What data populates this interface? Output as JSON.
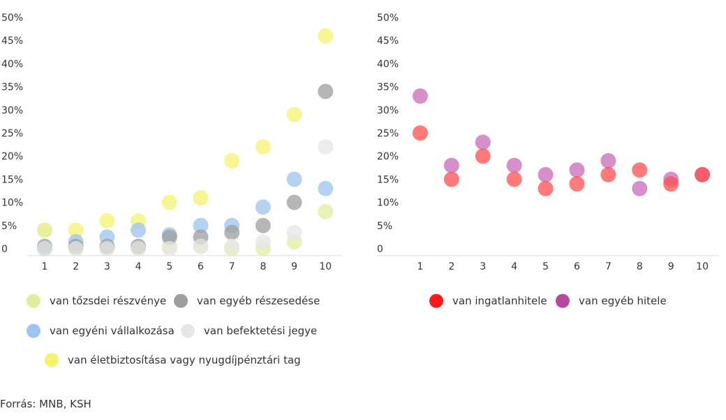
{
  "source": "Forrás: MNB, KSH",
  "chart_data": [
    {
      "type": "scatter",
      "title": "",
      "xlabel": "",
      "ylabel": "",
      "ylim": [
        0,
        50
      ],
      "y_ticks": [
        "50%",
        "45%",
        "40%",
        "35%",
        "30%",
        "25%",
        "20%",
        "15%",
        "10%",
        "5%",
        "0"
      ],
      "y_tick_values": [
        50,
        45,
        40,
        35,
        30,
        25,
        20,
        15,
        10,
        5,
        0
      ],
      "categories": [
        "1",
        "2",
        "3",
        "4",
        "5",
        "6",
        "7",
        "8",
        "9",
        "10"
      ],
      "legend": "bottom",
      "series": [
        {
          "name": "van életbiztosítása vagy nyugdíjpénztári tag",
          "color": "#f5f36e",
          "values": [
            4,
            4,
            6,
            6,
            10,
            11,
            19,
            22,
            29,
            46
          ]
        },
        {
          "name": "van tőzsdei részvénye",
          "color": "#e3eda0",
          "values": [
            4,
            0,
            0,
            0,
            0.5,
            0.5,
            0,
            0,
            1.5,
            8
          ]
        },
        {
          "name": "van egyéni vállalkozása",
          "color": "#9dc3ef",
          "values": [
            0,
            1.5,
            2.5,
            4,
            3,
            5,
            5,
            9,
            15,
            13
          ]
        },
        {
          "name": "van egyéb részesedése",
          "color": "#9e9e9e",
          "values": [
            0.5,
            0.5,
            0.5,
            0.5,
            2.5,
            2.5,
            3.5,
            5,
            10,
            34
          ]
        },
        {
          "name": "van befektetési jegye",
          "color": "#e6e6e6",
          "values": [
            0,
            0,
            0,
            0,
            0,
            0.5,
            0.5,
            1.5,
            3.5,
            22
          ]
        }
      ],
      "legend_items": [
        {
          "label": "van tőzsdei részvénye",
          "color": "#e3eda0"
        },
        {
          "label": "van egyéb részesedése",
          "color": "#9e9e9e"
        },
        {
          "label": "van egyéni vállalkozása",
          "color": "#9dc3ef"
        },
        {
          "label": "van befektetési jegye",
          "color": "#e6e6e6"
        },
        {
          "label": "van életbiztosítása vagy nyugdíjpénztári tag",
          "color": "#f5f36e"
        }
      ]
    },
    {
      "type": "scatter",
      "title": "",
      "xlabel": "",
      "ylabel": "",
      "ylim": [
        0,
        50
      ],
      "y_ticks": [
        "50%",
        "45%",
        "40%",
        "35%",
        "30%",
        "25%",
        "20%",
        "15%",
        "10%",
        "5%",
        "0"
      ],
      "y_tick_values": [
        50,
        45,
        40,
        35,
        30,
        25,
        20,
        15,
        10,
        5,
        0
      ],
      "categories": [
        "1",
        "2",
        "3",
        "4",
        "5",
        "6",
        "7",
        "8",
        "9",
        "10"
      ],
      "legend": "bottom",
      "series": [
        {
          "name": "van egyéb hitele",
          "color": "#c869b9",
          "values": [
            33,
            18,
            23,
            18,
            16,
            17,
            19,
            13,
            15,
            16
          ]
        },
        {
          "name": "van ingatlanhitele",
          "color": "#ff4d4d",
          "values": [
            25,
            15,
            20,
            15,
            13,
            14,
            16,
            17,
            14,
            16
          ]
        }
      ],
      "legend_items": [
        {
          "label": "van ingatlanhitele",
          "color": "#ff1a1a"
        },
        {
          "label": "van egyéb hitele",
          "color": "#b5479f"
        }
      ]
    }
  ]
}
